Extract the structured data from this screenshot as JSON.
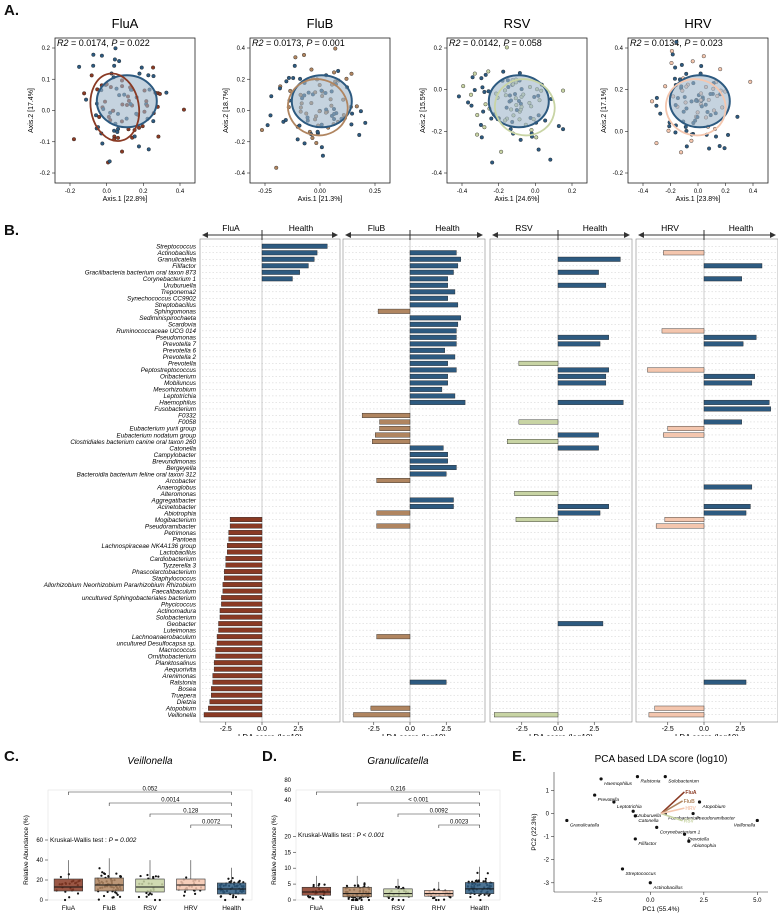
{
  "colors": {
    "FluA": "#8a3a24",
    "FluB": "#b08560",
    "RSV": "#c8d4a4",
    "HRV": "#f4c6ae",
    "Health": "#2d5a80",
    "healthFill": "#9fb5c9"
  },
  "panelA": {
    "letter": "A.",
    "plots": [
      {
        "title": "FluA",
        "r2_label": "R2",
        "r2": "= 0.0174,",
        "p_label": "P",
        "p": "= 0.022",
        "xlabel": "Axis.1 [22.8%]",
        "ylabel": "Axis.2 [17.4%]",
        "xticks": [
          "-0.2",
          "0.0",
          "0.2",
          "0.4"
        ],
        "yticks": [
          "0.2",
          "0.1",
          "0.0",
          "-0.1",
          "-0.2"
        ],
        "color": "#8a3a24"
      },
      {
        "title": "FluB",
        "r2_label": "R2",
        "r2": "= 0.0173,",
        "p_label": "P",
        "p": "= 0.001",
        "xlabel": "Axis.1 [21.3%]",
        "ylabel": "Axis.2 [18.7%]",
        "xticks": [
          "-0.25",
          "0.00",
          "0.25"
        ],
        "yticks": [
          "0.4",
          "0.2",
          "0.0",
          "-0.2",
          "-0.4"
        ],
        "color": "#b08560"
      },
      {
        "title": "RSV",
        "r2_label": "R2",
        "r2": "= 0.0142,",
        "p_label": "P",
        "p": "= 0.058",
        "xlabel": "Axis.1 [24.6%]",
        "ylabel": "Axis.2 [15.5%]",
        "xticks": [
          "-0.4",
          "-0.2",
          "0.0",
          "0.2"
        ],
        "yticks": [
          "0.2",
          "0.0",
          "-0.2",
          "-0.4"
        ],
        "color": "#c8d4a4"
      },
      {
        "title": "HRV",
        "r2_label": "R2",
        "r2": "= 0.0134,",
        "p_label": "P",
        "p": "= 0.023",
        "xlabel": "Axis.1 [23.8%]",
        "ylabel": "Axis.2 [17.1%]",
        "xticks": [
          "-0.4",
          "-0.2",
          "0.0",
          "0.2",
          "0.4"
        ],
        "yticks": [
          "0.4",
          "0.2",
          "0.0",
          "-0.2"
        ],
        "color": "#f4c6ae"
      }
    ]
  },
  "panelB": {
    "letter": "B.",
    "xlabel": "LDA score (log10)",
    "health_label": "Health",
    "groups": [
      "FluA",
      "FluB",
      "RSV",
      "HRV"
    ],
    "xticks": [
      "-2.5",
      "0.0",
      "2.5"
    ],
    "taxa": [
      "Streptococcus",
      "Actinobacillus",
      "Granulicatella",
      "Filifactor",
      "Gracilibacteria bacterium oral taxon 873",
      "Corynebacterium 1",
      "Uruburuella",
      "Treponema2",
      "Synechococcus CC9902",
      "Streptobacillus",
      "Sphingomonas",
      "Sediminispirochaeta",
      "Scardovia",
      "Ruminococcaceae UCG 014",
      "Pseudomonas",
      "Prevotella 7",
      "Prevotella 6",
      "Prevotella 2",
      "Prevotella",
      "Peptostreptococcus",
      "Oribacterium",
      "Mobiluncus",
      "Mesorhizobium",
      "Leptotrichia",
      "Haemophilus",
      "Fusobacterium",
      "F0332",
      "F0058",
      "Eubacterium yurii group",
      "Eubacterium nodatum group",
      "Clostridiales bacterium canine oral taxon 260",
      "Catonella",
      "Campylobacter",
      "Brevundimonas",
      "Bergeyella",
      "Bacteroidia bacterium feline oral taxon 312",
      "Arcobacter",
      "Anaeroglobus",
      "Alteromonas",
      "Aggregatibacter",
      "Acinetobacter",
      "Abiotrophia",
      "Mogibacterium",
      "Pseudoramibacter",
      "Petrimonas",
      "Pantoea",
      "Lachnospiraceae NK4A136 group",
      "Lactobacillus",
      "Cardiobacterium",
      "Tyzzerella 3",
      "Phascolarctobacterium",
      "Staphylococcus",
      "Allorhizobium Neorhizobium Pararhizobium Rhizobium",
      "Faecalibaculum",
      "uncultured Sphingobacteriales bacterium",
      "Phycicoccus",
      "Actinomadura",
      "Solobacterium",
      "Geobacter",
      "Luteimonas",
      "Lachnoanaerobaculum",
      "uncultured Desulfocapsa sp.",
      "Macrococcus",
      "Ornithobacterium",
      "Planktosalinus",
      "Aequorivita",
      "Arenimonas",
      "Ralstonia",
      "Bosea",
      "Truepera",
      "Dietzia",
      "Atopobium",
      "Veillonella"
    ],
    "lda": {
      "FluA": [
        4.5,
        3.8,
        3.6,
        3.2,
        2.6,
        2.1,
        0,
        0,
        0,
        0,
        0,
        0,
        0,
        0,
        0,
        0,
        0,
        0,
        0,
        0,
        0,
        0,
        0,
        0,
        0,
        0,
        0,
        0,
        0,
        0,
        0,
        0,
        0,
        0,
        0,
        0,
        0,
        0,
        0,
        0,
        0,
        0,
        -2.2,
        -2.2,
        -2.3,
        -2.3,
        -2.4,
        -2.4,
        -2.5,
        -2.5,
        -2.6,
        -2.6,
        -2.7,
        -2.7,
        -2.8,
        -2.8,
        -2.9,
        -2.9,
        -3.0,
        -3.0,
        -3.1,
        -3.1,
        -3.2,
        -3.2,
        -3.3,
        -3.3,
        -3.4,
        -3.4,
        -3.5,
        -3.5,
        -3.6,
        -3.7,
        -4.0
      ],
      "FluB": [
        0,
        3.2,
        3.5,
        3.3,
        3.0,
        2.6,
        2.6,
        3.1,
        2.6,
        3.3,
        -2.2,
        3.5,
        3.3,
        3.2,
        3.2,
        3.2,
        2.4,
        3.1,
        2.6,
        3.2,
        2.6,
        2.6,
        2.2,
        3.1,
        3.8,
        0,
        -3.3,
        -2.1,
        -2.1,
        -2.4,
        -2.6,
        2.3,
        2.6,
        2.6,
        3.2,
        2.5,
        -2.3,
        0,
        0,
        3.0,
        3.0,
        -2.3,
        0,
        -2.3,
        0,
        0,
        0,
        0,
        0,
        0,
        0,
        0,
        0,
        0,
        0,
        0,
        0,
        0,
        0,
        0,
        -2.3,
        0,
        0,
        0,
        0,
        0,
        0,
        2.5,
        0,
        0,
        0,
        -2.7,
        -3.9
      ],
      "RSV": [
        0,
        0,
        4.3,
        0,
        2.8,
        0,
        3.3,
        0,
        0,
        0,
        0,
        0,
        0,
        0,
        3.5,
        2.9,
        0,
        0,
        -2.7,
        3.5,
        3.3,
        3.3,
        0,
        0,
        4.5,
        0,
        0,
        -2.7,
        0,
        2.8,
        -3.5,
        2.8,
        0,
        0,
        0,
        0,
        0,
        0,
        -3.0,
        0,
        3.5,
        2.9,
        -2.9,
        0,
        0,
        0,
        0,
        0,
        0,
        0,
        0,
        0,
        0,
        0,
        0,
        0,
        0,
        0,
        3.1,
        0,
        0,
        0,
        0,
        0,
        0,
        0,
        0,
        0,
        0,
        0,
        0,
        0,
        -4.4
      ],
      "HRV": [
        0,
        -2.8,
        0,
        4.0,
        0,
        2.6,
        0,
        0,
        0,
        0,
        0,
        0,
        0,
        -2.9,
        3.6,
        2.7,
        0,
        0,
        0,
        -3.9,
        3.5,
        3.3,
        0,
        0,
        4.5,
        4.6,
        0,
        2.6,
        -2.5,
        -2.8,
        0,
        0,
        0,
        0,
        0,
        0,
        0,
        3.3,
        0,
        0,
        3.2,
        2.9,
        -2.7,
        -3.3,
        0,
        0,
        0,
        0,
        0,
        0,
        0,
        0,
        0,
        0,
        0,
        0,
        0,
        0,
        0,
        0,
        0,
        0,
        0,
        0,
        0,
        0,
        0,
        2.9,
        0,
        0,
        0,
        -3.4,
        -3.8
      ]
    }
  },
  "panelC": {
    "letter": "C.",
    "title": "Veillonella",
    "ylabel": "Relative Abundance (%)",
    "kw_label": "Kruskal-Wallis test :",
    "kw_p": "P = 0.002",
    "yticks": [
      "0",
      "20",
      "40",
      "60"
    ],
    "categories": [
      "FluA",
      "FluB",
      "RSV",
      "HRV",
      "Health"
    ],
    "comparisons": [
      "0.052",
      "0.0014",
      "0.128",
      "0.0072"
    ],
    "boxes": [
      [
        9,
        13,
        21
      ],
      [
        9,
        15,
        22
      ],
      [
        8,
        13,
        21
      ],
      [
        10,
        15,
        21
      ],
      [
        6,
        11,
        17
      ]
    ]
  },
  "panelD": {
    "letter": "D.",
    "title": "Granulicatella",
    "ylabel": "Relative Abundance (%)",
    "kw_label": "Kruskal-Wallis test :",
    "kw_p": "P < 0.001",
    "yticks": [
      "0",
      "5",
      "10",
      "15",
      "20",
      "40",
      "60",
      "80"
    ],
    "categories": [
      "FluA",
      "FluB",
      "RSV",
      "RHV",
      "Health"
    ],
    "comparisons": [
      "0.216",
      "< 0.001",
      "0.0092",
      "0.0023"
    ],
    "boxes": [
      [
        1.5,
        2.5,
        4.0
      ],
      [
        1.0,
        2.0,
        4.0
      ],
      [
        1.0,
        2.0,
        3.5
      ],
      [
        1.2,
        2.0,
        3.0
      ],
      [
        2.0,
        3.5,
        5.5
      ]
    ]
  },
  "panelE": {
    "letter": "E.",
    "title": "PCA based LDA score (log10)",
    "xlabel": "PC1 (55.4%)",
    "ylabel": "PC2 (22.3%)",
    "xticks": [
      "-2.5",
      "0.0",
      "2.5",
      "5.0"
    ],
    "yticks": [
      "1",
      "0",
      "-1",
      "-2",
      "-3"
    ],
    "points": [
      {
        "name": "Haemophilus",
        "x": -2.3,
        "y": 1.5
      },
      {
        "name": "Ralstonia",
        "x": -0.6,
        "y": 1.6
      },
      {
        "name": "Solobacterium",
        "x": 0.7,
        "y": 1.6
      },
      {
        "name": "Prevotella",
        "x": -2.6,
        "y": 0.8
      },
      {
        "name": "Leptotrichia",
        "x": -1.7,
        "y": 0.5
      },
      {
        "name": "Uruburuella",
        "x": -0.8,
        "y": 0.1
      },
      {
        "name": "Catonella",
        "x": -0.7,
        "y": -0.1
      },
      {
        "name": "Granulicatella",
        "x": -3.9,
        "y": -0.3
      },
      {
        "name": "Atopobium",
        "x": 2.3,
        "y": 0.5
      },
      {
        "name": "Pseudoramibacter",
        "x": 2.0,
        "y": 0.0
      },
      {
        "name": "Fusobacterium",
        "x": 0.7,
        "y": 0.0
      },
      {
        "name": "Veillonella",
        "x": 5.0,
        "y": -0.3
      },
      {
        "name": "Corynebacterium 1",
        "x": 0.3,
        "y": -0.6
      },
      {
        "name": "Prevotella",
        "x": 1.6,
        "y": -0.9
      },
      {
        "name": "Abiotrophia",
        "x": 1.8,
        "y": -1.2
      },
      {
        "name": "Filifactor",
        "x": -0.7,
        "y": -1.1
      },
      {
        "name": "Streptococcus",
        "x": -1.3,
        "y": -2.4
      },
      {
        "name": "Actinobacillus",
        "x": 0.0,
        "y": -3.0
      }
    ],
    "arrows": [
      {
        "name": "FluA",
        "dx": 1.3,
        "dy": 1.2
      },
      {
        "name": "FluB",
        "dx": 1.2,
        "dy": 0.7
      },
      {
        "name": "RSV",
        "dx": 1.2,
        "dy": -0.4
      },
      {
        "name": "HRV",
        "dx": 1.3,
        "dy": 0.3
      }
    ]
  }
}
